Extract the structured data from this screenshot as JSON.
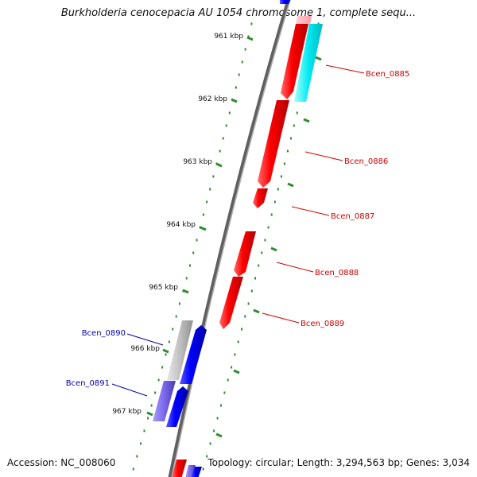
{
  "title": "Burkholderia cenocepacia AU 1054 chromosome 1, complete sequ...",
  "footer": {
    "accession": "Accession: NC_008060",
    "topology": "Topology: circular; Length: 3,294,563 bp; Genes: 3,034"
  },
  "ticks": [
    "961 kbp",
    "962 kbp",
    "963 kbp",
    "964 kbp",
    "965 kbp",
    "966 kbp",
    "967 kbp"
  ],
  "genes": [
    {
      "label": "Bcen_0885",
      "color": "#d40000"
    },
    {
      "label": "Bcen_0886",
      "color": "#d40000"
    },
    {
      "label": "Bcen_0887",
      "color": "#d40000"
    },
    {
      "label": "Bcen_0888",
      "color": "#d40000"
    },
    {
      "label": "Bcen_0889",
      "color": "#d40000"
    },
    {
      "label": "Bcen_0890",
      "color": "#0000aa"
    },
    {
      "label": "Bcen_0891",
      "color": "#0000aa"
    }
  ],
  "colors": {
    "backbone": "#808080",
    "tick": "#2e8b2e",
    "forward_gene": "#ff0000",
    "reverse_gene": "#0000ff",
    "cyan_feature": "#00e5ee",
    "pink_feature": "#ffb6c1",
    "gray_feature": "#b8b8b8",
    "lavender_feature": "#7b68ee"
  }
}
